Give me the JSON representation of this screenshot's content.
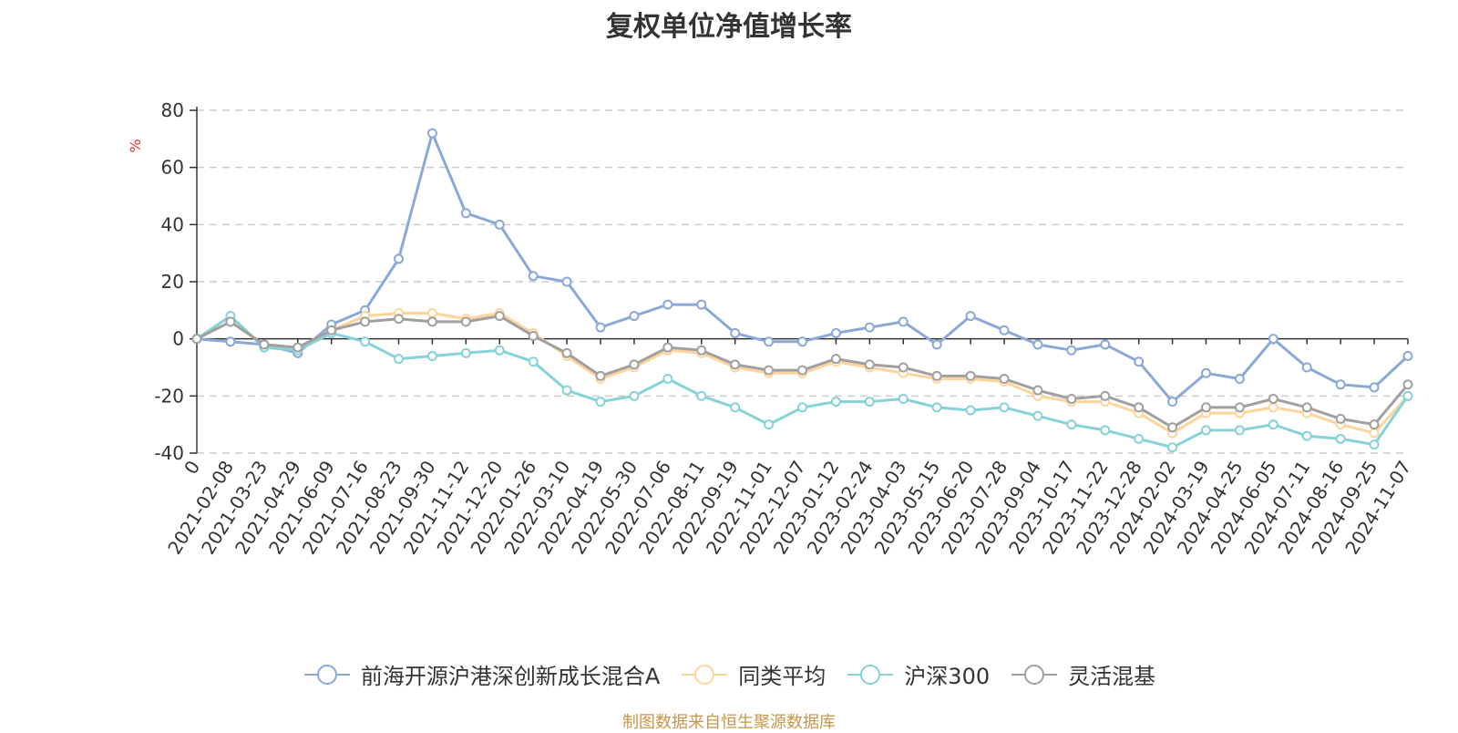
{
  "chart_data": {
    "type": "line",
    "title": "复权单位净值增长率",
    "ylabel": "%",
    "ylim": [
      -40,
      80
    ],
    "yticks": [
      -40,
      -20,
      0,
      20,
      40,
      60,
      80
    ],
    "grid": true,
    "legend_position": "bottom",
    "x": [
      "0",
      "2021-02-08",
      "2021-03-23",
      "2021-04-29",
      "2021-06-09",
      "2021-07-16",
      "2021-08-23",
      "2021-09-30",
      "2021-11-12",
      "2021-12-20",
      "2022-01-26",
      "2022-03-10",
      "2022-04-19",
      "2022-05-30",
      "2022-07-06",
      "2022-08-11",
      "2022-09-19",
      "2022-11-01",
      "2022-12-07",
      "2023-01-12",
      "2023-02-24",
      "2023-04-03",
      "2023-05-15",
      "2023-06-20",
      "2023-07-28",
      "2023-09-04",
      "2023-10-17",
      "2023-11-22",
      "2023-12-28",
      "2024-02-02",
      "2024-03-19",
      "2024-04-25",
      "2024-06-05",
      "2024-07-11",
      "2024-08-16",
      "2024-09-25",
      "2024-11-07"
    ],
    "series": [
      {
        "name": "前海开源沪港深创新成长混合A",
        "color": "#8aa8d8",
        "values": [
          0,
          -1,
          -2,
          -5,
          5,
          10,
          28,
          72,
          44,
          40,
          22,
          20,
          4,
          8,
          12,
          12,
          2,
          -1,
          -1,
          2,
          4,
          6,
          -2,
          8,
          3,
          -2,
          -4,
          -2,
          -8,
          -22,
          -12,
          -14,
          0,
          -10,
          -16,
          -17,
          -6
        ]
      },
      {
        "name": "同类平均",
        "color": "#fdd59a",
        "values": [
          0,
          8,
          -3,
          -3,
          3,
          8,
          9,
          9,
          7,
          9,
          2,
          -6,
          -14,
          -10,
          -4,
          -5,
          -10,
          -12,
          -12,
          -8,
          -10,
          -12,
          -14,
          -14,
          -15,
          -20,
          -22,
          -22,
          -26,
          -33,
          -26,
          -26,
          -24,
          -26,
          -30,
          -33,
          -20
        ]
      },
      {
        "name": "沪深300",
        "color": "#86d2d8",
        "values": [
          0,
          8,
          -3,
          -4,
          2,
          -1,
          -7,
          -6,
          -5,
          -4,
          -8,
          -18,
          -22,
          -20,
          -14,
          -20,
          -24,
          -30,
          -24,
          -22,
          -22,
          -21,
          -24,
          -25,
          -24,
          -27,
          -30,
          -32,
          -35,
          -38,
          -32,
          -32,
          -30,
          -34,
          -35,
          -37,
          -20
        ]
      },
      {
        "name": "灵活混基",
        "color": "#a0a0a0",
        "values": [
          0,
          6,
          -2,
          -3,
          3,
          6,
          7,
          6,
          6,
          8,
          1,
          -5,
          -13,
          -9,
          -3,
          -4,
          -9,
          -11,
          -11,
          -7,
          -9,
          -10,
          -13,
          -13,
          -14,
          -18,
          -21,
          -20,
          -24,
          -31,
          -24,
          -24,
          -21,
          -24,
          -28,
          -30,
          -16
        ]
      }
    ]
  },
  "source_note": "制图数据来自恒生聚源数据库"
}
